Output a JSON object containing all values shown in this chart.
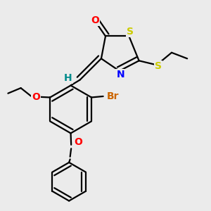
{
  "background_color": "#ebebeb",
  "figsize": [
    3.0,
    3.0
  ],
  "dpi": 100,
  "atom_colors": {
    "O": "#ff0000",
    "N": "#0000ff",
    "S": "#cccc00",
    "Br": "#cc6600",
    "H": "#008b8b",
    "C": "#000000"
  },
  "bond_color": "#000000",
  "bond_lw": 1.6,
  "font_size": 10
}
